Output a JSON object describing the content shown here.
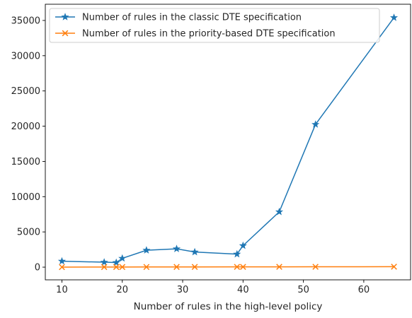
{
  "chart_data": {
    "type": "line",
    "title": "",
    "xlabel": "Number of rules in the high-level policy",
    "ylabel": "",
    "xlim": [
      7.25,
      67.75
    ],
    "ylim": [
      -1800,
      37300
    ],
    "xticks": [
      10,
      20,
      30,
      40,
      50,
      60
    ],
    "yticks": [
      0,
      5000,
      10000,
      15000,
      20000,
      25000,
      30000,
      35000
    ],
    "grid": false,
    "legend_position": "upper-left",
    "series": [
      {
        "name": "Number of rules in the classic DTE specification",
        "color": "#1f77b4",
        "marker": "star",
        "x": [
          10,
          17,
          19,
          20,
          24,
          29,
          32,
          39,
          40,
          46,
          52,
          65
        ],
        "y": [
          850,
          700,
          650,
          1250,
          2400,
          2600,
          2150,
          1850,
          3050,
          7850,
          20250,
          35400
        ]
      },
      {
        "name": "Number of rules in the priority-based DTE specification",
        "color": "#ff7f0e",
        "marker": "x",
        "x": [
          10,
          17,
          19,
          20,
          24,
          29,
          32,
          39,
          40,
          46,
          52,
          65
        ],
        "y": [
          10,
          17,
          19,
          20,
          24,
          29,
          32,
          39,
          40,
          46,
          52,
          65
        ]
      }
    ]
  }
}
